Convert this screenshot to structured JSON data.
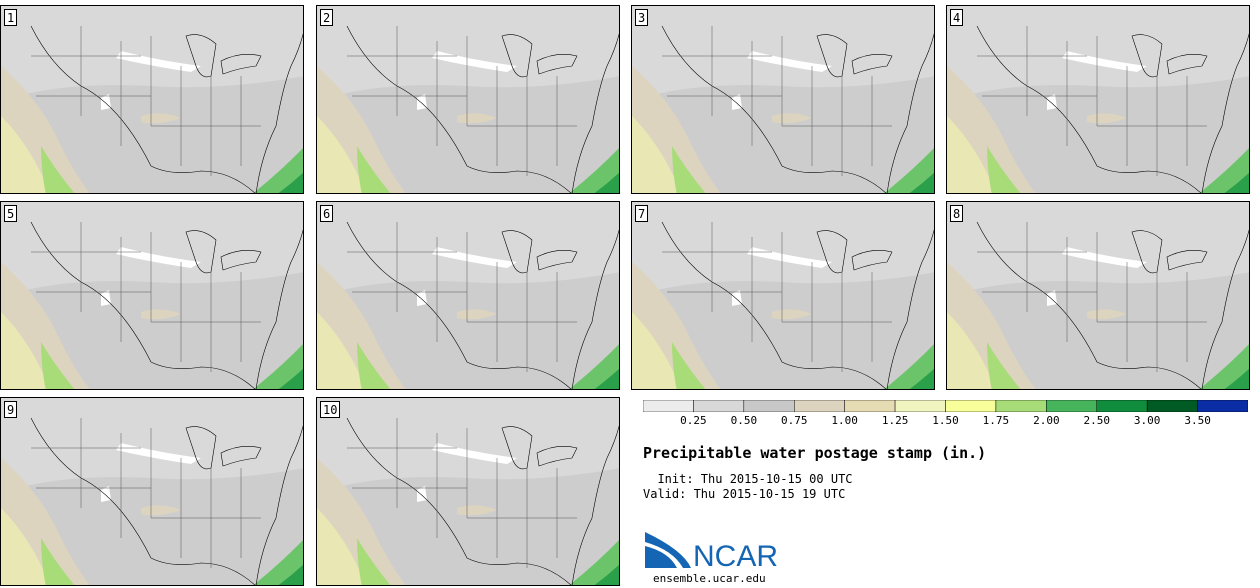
{
  "stamps": [
    {
      "label": "1"
    },
    {
      "label": "2"
    },
    {
      "label": "3"
    },
    {
      "label": "4"
    },
    {
      "label": "5"
    },
    {
      "label": "6"
    },
    {
      "label": "7"
    },
    {
      "label": "8"
    },
    {
      "label": "9"
    },
    {
      "label": "10"
    }
  ],
  "colorbar": {
    "ticks": [
      "0.25",
      "0.50",
      "0.75",
      "1.00",
      "1.25",
      "1.50",
      "1.75",
      "2.00",
      "2.50",
      "3.00",
      "3.50"
    ],
    "colors": [
      "#ececec",
      "#d8d8d8",
      "#c8c8c8",
      "#ddd4c0",
      "#e6dcb4",
      "#f0f5c0",
      "#f8ff9a",
      "#a8dc78",
      "#46b45a",
      "#0f8c3c",
      "#005a23",
      "#0a2ca4"
    ]
  },
  "title": "Precipitable water postage stamp (in.)",
  "init_line": "  Init: Thu 2015-10-15 00 UTC",
  "valid_line": "Valid: Thu 2015-10-15 19 UTC",
  "logo_text": "NCAR",
  "site": "ensemble.ucar.edu",
  "colors": {
    "map_outline": "#000000",
    "ncar_blue": "#1466b4"
  }
}
